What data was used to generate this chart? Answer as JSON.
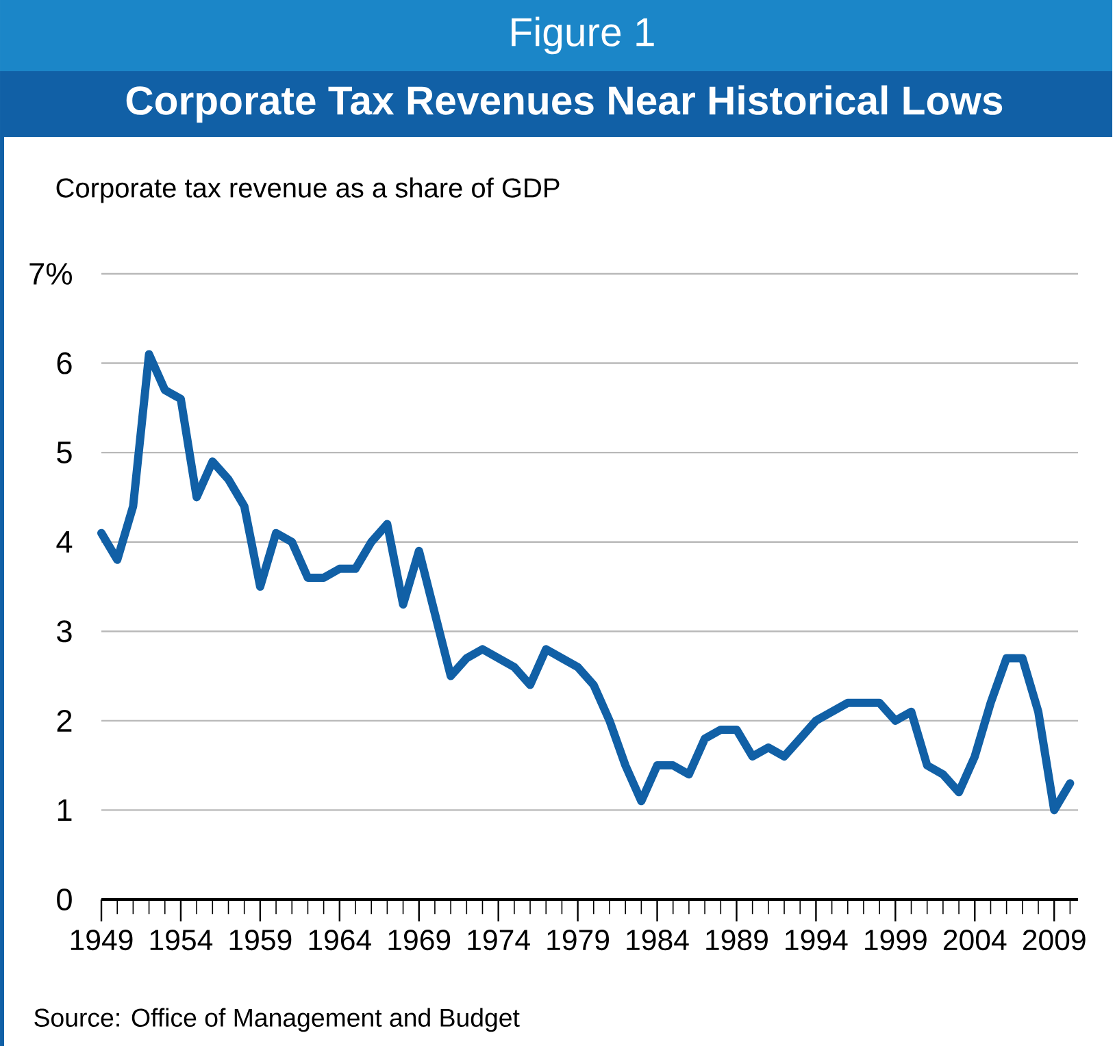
{
  "chart_data": {
    "type": "line",
    "title": "Corporate Tax Revenues Near Historical Lows",
    "ylabel": "Corporate tax revenue as a share of GDP",
    "annotations": [
      "Figure 1",
      "Source: Office of Management and Budget"
    ],
    "x": [
      1949,
      1950,
      1951,
      1952,
      1953,
      1954,
      1955,
      1956,
      1957,
      1958,
      1959,
      1960,
      1961,
      1962,
      1963,
      1964,
      1965,
      1966,
      1967,
      1968,
      1969,
      1970,
      1971,
      1972,
      1973,
      1974,
      1975,
      1976,
      1977,
      1978,
      1979,
      1980,
      1981,
      1982,
      1983,
      1984,
      1985,
      1986,
      1987,
      1988,
      1989,
      1990,
      1991,
      1992,
      1993,
      1994,
      1995,
      1996,
      1997,
      1998,
      1999,
      2000,
      2001,
      2002,
      2003,
      2004,
      2005,
      2006,
      2007,
      2008,
      2009,
      2010
    ],
    "series": [
      {
        "color": "#1160a6",
        "values": [
          4.1,
          3.8,
          4.4,
          6.1,
          5.7,
          5.6,
          4.5,
          4.9,
          4.7,
          4.4,
          3.5,
          4.1,
          4.0,
          3.6,
          3.6,
          3.7,
          3.7,
          4.0,
          4.2,
          3.3,
          3.9,
          3.2,
          2.5,
          2.7,
          2.8,
          2.7,
          2.6,
          2.4,
          2.8,
          2.7,
          2.6,
          2.4,
          2.0,
          1.5,
          1.1,
          1.5,
          1.5,
          1.4,
          1.8,
          1.9,
          1.9,
          1.6,
          1.7,
          1.6,
          1.8,
          2.0,
          2.1,
          2.2,
          2.2,
          2.2,
          2.0,
          2.1,
          1.5,
          1.4,
          1.2,
          1.6,
          2.2,
          2.7,
          2.7,
          2.1,
          1.0,
          1.3
        ]
      }
    ],
    "xlim": [
      1949,
      2010.5
    ],
    "ylim": [
      0,
      7
    ],
    "xticks": [
      1949,
      {
        "value": 1950,
        "label": null
      },
      {
        "value": 1951,
        "label": null
      },
      {
        "value": 1952,
        "label": null
      },
      {
        "value": 1953,
        "label": null
      },
      1954,
      {
        "value": 1955,
        "label": null
      },
      {
        "value": 1956,
        "label": null
      },
      {
        "value": 1957,
        "label": null
      },
      {
        "value": 1958,
        "label": null
      },
      1959,
      {
        "value": 1960,
        "label": null
      },
      {
        "value": 1961,
        "label": null
      },
      {
        "value": 1962,
        "label": null
      },
      {
        "value": 1963,
        "label": null
      },
      1964,
      {
        "value": 1965,
        "label": null
      },
      {
        "value": 1966,
        "label": null
      },
      {
        "value": 1967,
        "label": null
      },
      {
        "value": 1968,
        "label": null
      },
      1969,
      {
        "value": 1970,
        "label": null
      },
      {
        "value": 1971,
        "label": null
      },
      {
        "value": 1972,
        "label": null
      },
      {
        "value": 1973,
        "label": null
      },
      1974,
      {
        "value": 1975,
        "label": null
      },
      {
        "value": 1976,
        "label": null
      },
      {
        "value": 1977,
        "label": null
      },
      {
        "value": 1978,
        "label": null
      },
      1979,
      {
        "value": 1980,
        "label": null
      },
      {
        "value": 1981,
        "label": null
      },
      {
        "value": 1982,
        "label": null
      },
      {
        "value": 1983,
        "label": null
      },
      1984,
      {
        "value": 1985,
        "label": null
      },
      {
        "value": 1986,
        "label": null
      },
      {
        "value": 1987,
        "label": null
      },
      {
        "value": 1988,
        "label": null
      },
      1989,
      {
        "value": 1990,
        "label": null
      },
      {
        "value": 1991,
        "label": null
      },
      {
        "value": 1992,
        "label": null
      },
      {
        "value": 1993,
        "label": null
      },
      1994,
      {
        "value": 1995,
        "label": null
      },
      {
        "value": 1996,
        "label": null
      },
      {
        "value": 1997,
        "label": null
      },
      {
        "value": 1998,
        "label": null
      },
      1999,
      {
        "value": 2000,
        "label": null
      },
      {
        "value": 2001,
        "label": null
      },
      {
        "value": 2002,
        "label": null
      },
      {
        "value": 2003,
        "label": null
      },
      2004,
      {
        "value": 2005,
        "label": null
      },
      {
        "value": 2006,
        "label": null
      },
      {
        "value": 2007,
        "label": null
      },
      {
        "value": 2008,
        "label": null
      },
      2009,
      {
        "value": 2010,
        "label": null
      }
    ],
    "yticks": [
      0,
      1,
      2,
      3,
      4,
      5,
      6,
      {
        "value": 7,
        "label": "7%"
      }
    ],
    "grid": "y",
    "marker": "none",
    "line_style": "solid"
  }
}
